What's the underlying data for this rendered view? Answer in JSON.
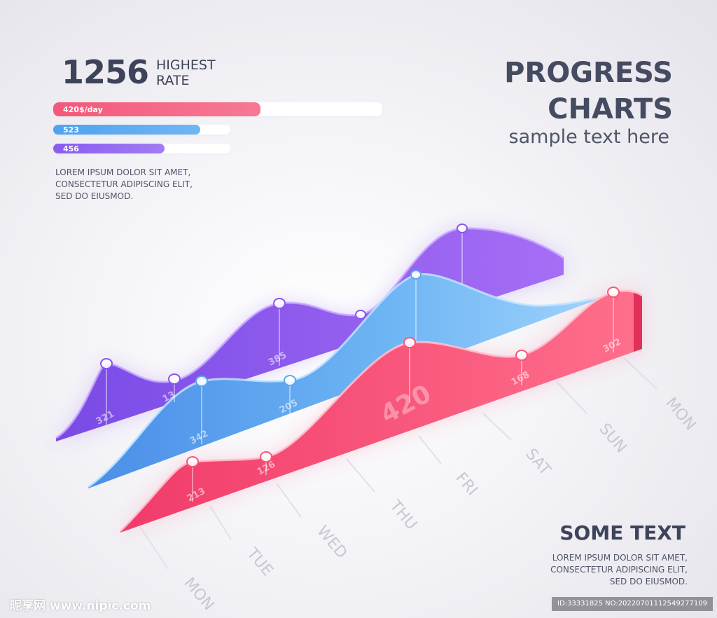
{
  "header": {
    "big_number": "1256",
    "rate_label": "HIGHEST\nRATE",
    "bars": [
      {
        "label": "420$/day",
        "fraction": 0.63,
        "color": "#f4587a"
      },
      {
        "label": "523",
        "fraction": 0.83,
        "color": "#4ea3f0"
      },
      {
        "label": "456",
        "fraction": 0.63,
        "color": "#8a5cf0"
      }
    ],
    "lorem": "LOREM IPSUM DOLOR SIT AMET,\nCONSECTETUR ADIPISCING ELIT,\nSED DO EIUSMOD."
  },
  "title": {
    "line1": "PROGRESS",
    "line2": "CHARTS",
    "subtitle": "sample text here"
  },
  "footer": {
    "heading": "SOME TEXT",
    "lorem": "LOREM IPSUM DOLOR SIT AMET,\nCONSECTETUR ADIPISCING ELIT,\nSED DO EIUSMOD."
  },
  "watermark": {
    "left": "昵享网 www.nipic.com",
    "right": "ID:33331825 NO:20220701112549277109"
  },
  "chart_data": {
    "type": "area",
    "categories": [
      "MON",
      "TUE",
      "WED",
      "THU",
      "FRI",
      "SAT",
      "SUN",
      "MON"
    ],
    "series": [
      {
        "color": "#f4587a",
        "points": [
          {
            "label": "213"
          },
          {
            "label": "126"
          },
          {
            "label": "420"
          },
          {
            "label": "168"
          },
          {
            "label": "302"
          }
        ]
      },
      {
        "color": "#5aa8ee",
        "points": [
          {
            "label": "342"
          },
          {
            "label": "205"
          }
        ]
      },
      {
        "color": "#8b55ea",
        "points": [
          {
            "label": "321"
          },
          {
            "label": "13"
          },
          {
            "label": "385"
          }
        ]
      }
    ]
  }
}
